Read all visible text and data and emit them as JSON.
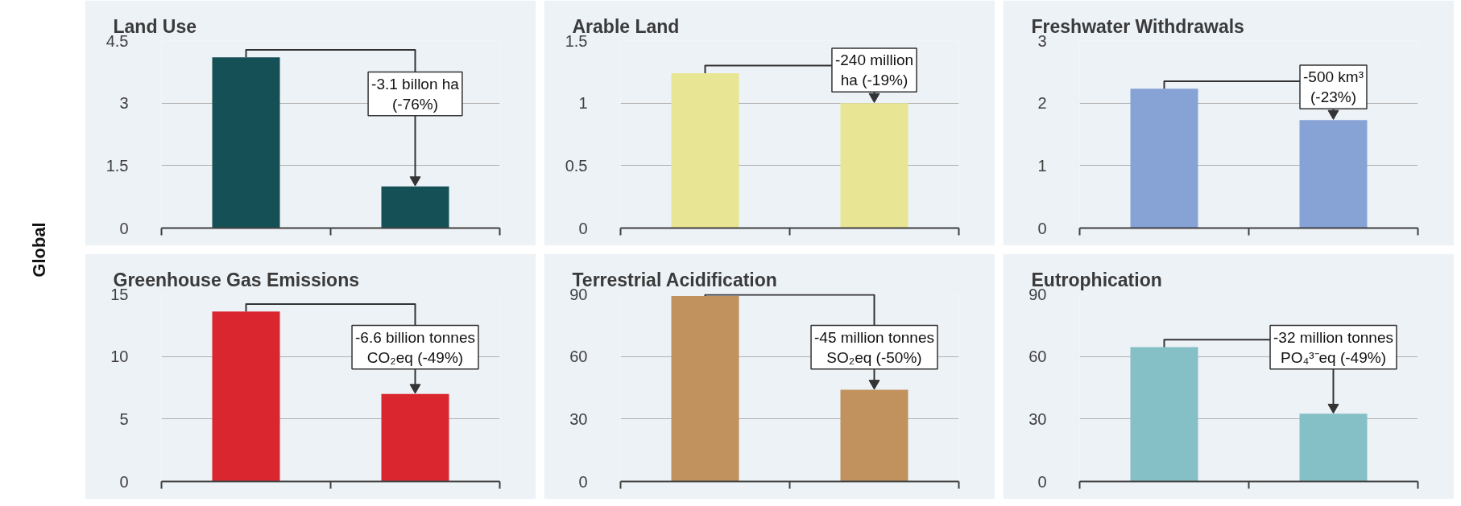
{
  "chart_data": [
    {
      "type": "other",
      "annotations": [
        "Global"
      ]
    },
    {
      "type": "bar",
      "title": "Land Use",
      "categories": [
        null,
        null
      ],
      "values": [
        4.1,
        1.0
      ],
      "color": "#155057",
      "ylim": [
        0,
        4.5
      ],
      "yticks": [
        0,
        1.5,
        3,
        4.5
      ],
      "grid": "y",
      "tick_labels": "y",
      "annotations": [
        "-3.1 billon ha\n(-76%)"
      ]
    },
    {
      "type": "bar",
      "title": "Arable Land",
      "categories": [
        null,
        null
      ],
      "values": [
        1.24,
        1.0
      ],
      "color": "#e8e594",
      "ylim": [
        0,
        1.5
      ],
      "yticks": [
        0,
        0.5,
        1,
        1.5
      ],
      "grid": "y",
      "tick_labels": "y",
      "annotations": [
        "-240 million\nha (-19%)"
      ]
    },
    {
      "type": "bar",
      "title": "Freshwater Withdrawals",
      "categories": [
        null,
        null
      ],
      "values": [
        2.23,
        1.73
      ],
      "color": "#87a3d6",
      "ylim": [
        0,
        3
      ],
      "yticks": [
        0,
        1,
        2,
        3
      ],
      "grid": "y",
      "tick_labels": "y",
      "annotations": [
        "-500 km³\n(-23%)"
      ]
    },
    {
      "type": "bar",
      "title": "Greenhouse Gas Emissions",
      "categories": [
        null,
        null
      ],
      "values": [
        13.6,
        7.0
      ],
      "color": "#d9262f",
      "ylim": [
        0,
        15
      ],
      "yticks": [
        0,
        5,
        10,
        15
      ],
      "grid": "y",
      "tick_labels": "y",
      "annotations": [
        "-6.6 billion tonnes\nCO₂eq (-49%)"
      ]
    },
    {
      "type": "bar",
      "title": "Terrestrial Acidification",
      "categories": [
        null,
        null
      ],
      "values": [
        89,
        44
      ],
      "color": "#c2925e",
      "ylim": [
        0,
        90
      ],
      "yticks": [
        0,
        30,
        60,
        90
      ],
      "grid": "y",
      "tick_labels": "y",
      "annotations": [
        "-45 million tonnes\nSO₂eq (-50%)"
      ]
    },
    {
      "type": "bar",
      "title": "Eutrophication",
      "categories": [
        null,
        null
      ],
      "values": [
        64.5,
        32.5
      ],
      "color": "#84c0c6",
      "ylim": [
        0,
        90
      ],
      "yticks": [
        0,
        30,
        60,
        90
      ],
      "grid": "y",
      "tick_labels": "y",
      "annotations": [
        "-32 million tonnes\nPO₄³⁻eq (-49%)"
      ]
    }
  ]
}
